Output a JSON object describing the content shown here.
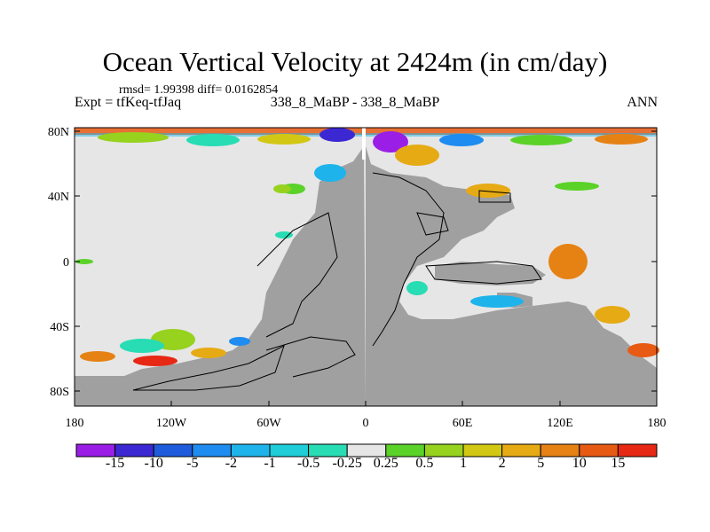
{
  "title": "Ocean Vertical Velocity at 2424m (in cm/day)",
  "stats": "rmsd= 1.99398  diff= 0.0162854",
  "left_label": "Expt = tfKeq-tfJaq",
  "center_label": "338_8_MaBP - 338_8_MaBP",
  "right_label": "ANN",
  "lat_ticks": [
    "80N",
    "40N",
    "0",
    "40S",
    "80S"
  ],
  "lon_ticks": [
    "180",
    "120W",
    "60W",
    "0",
    "60E",
    "120E",
    "180"
  ],
  "colorbar": {
    "labels": [
      "-15",
      "-10",
      "-5",
      "-2",
      "-1",
      "-0.5",
      "-0.25",
      "0.25",
      "0.5",
      "1",
      "2",
      "5",
      "10",
      "15"
    ],
    "colors": [
      "#9a1ee6",
      "#3c28d2",
      "#1f5cdc",
      "#1e8cf0",
      "#1eb4eb",
      "#1ecdd7",
      "#28dcb4",
      "#e6e6e6",
      "#5ad228",
      "#96d21e",
      "#d2c814",
      "#e6aa14",
      "#e68214",
      "#e65a14",
      "#e62814"
    ]
  },
  "colors": {
    "land": "#a0a0a0",
    "ocean_zero": "#e6e6e6",
    "coast": "#000000"
  }
}
